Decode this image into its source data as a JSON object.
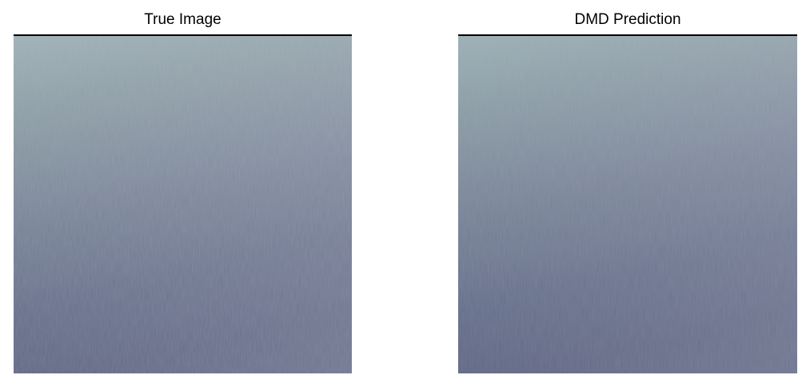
{
  "panels": [
    {
      "title": "True Image",
      "image": {
        "content": "water-surface-texture",
        "colors": {
          "top": "#9fb2b6",
          "upper_mid": "#8d9ea6",
          "mid": "#7a8598",
          "lower_mid": "#666f8a",
          "bottom": "#5e6482"
        }
      }
    },
    {
      "title": "DMD Prediction",
      "image": {
        "content": "water-surface-texture",
        "colors": {
          "top": "#9cb0b5",
          "upper_mid": "#8a9ba5",
          "mid": "#778296",
          "lower_mid": "#646d89",
          "bottom": "#5d6381"
        }
      }
    }
  ]
}
